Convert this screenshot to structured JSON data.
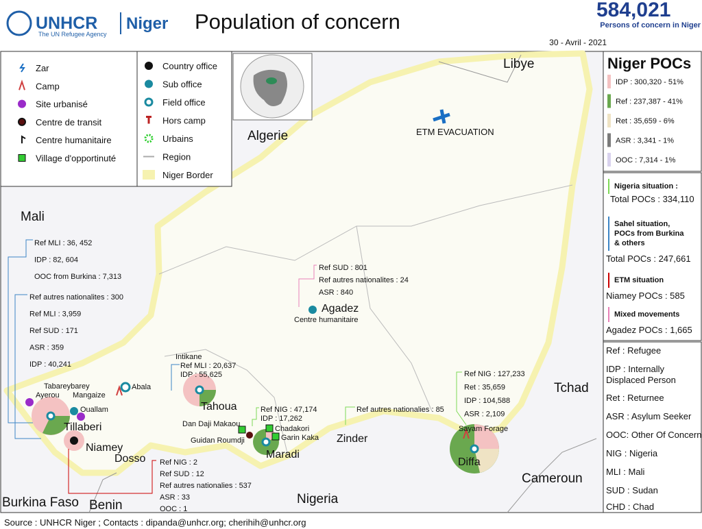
{
  "header": {
    "logo": "UNHCR",
    "office": "Niger",
    "tagline": "The UN Refugee Agency",
    "title": "Population of concern",
    "total": "584,021",
    "total_caption": "Persons of concern in Niger",
    "date": "30 - Avril - 2021"
  },
  "legend": {
    "items": [
      {
        "label": "Zar"
      },
      {
        "label": "Camp"
      },
      {
        "label": "Site urbanisé"
      },
      {
        "label": "Centre de transit"
      },
      {
        "label": "Centre humanitaire"
      },
      {
        "label": "Village d'opportinuté"
      },
      {
        "label": "Country office"
      },
      {
        "label": "Sub office"
      },
      {
        "label": "Field office"
      },
      {
        "label": "Hors camp"
      },
      {
        "label": "Urbains"
      },
      {
        "label": "Region"
      },
      {
        "label": "Niger Border"
      }
    ]
  },
  "map": {
    "countries": [
      "Libye",
      "Algerie",
      "Mali",
      "Tchad",
      "Nigeria",
      "Cameroun",
      "Burkina Faso",
      "Benin"
    ],
    "regions": [
      "Agadez",
      "Tahoua",
      "Tillaberi",
      "Niamey",
      "Dosso",
      "Maradi",
      "Zinder",
      "Diffa"
    ],
    "places": [
      "ETM EVACUATION",
      "Centre humanitaire",
      "Intikane",
      "Abala",
      "Tabareybarey",
      "Ayerou",
      "Mangaize",
      "Ouallam",
      "Dan Daji Makaou",
      "Guidan Roumdji",
      "Chadakori",
      "Garin Kaka",
      "Sayam Forage"
    ],
    "callouts": [
      {
        "lines": [
          "Ref MLI : 36, 452",
          "IDP : 82, 604",
          "OOC from Burkina : 7,313"
        ]
      },
      {
        "lines": [
          "Ref autres nationalites : 300",
          "Ref MLI : 3,959",
          "Ref SUD : 171",
          "ASR : 359",
          "IDP : 40,241"
        ]
      },
      {
        "lines": [
          "Ref MLI : 20,637",
          "IDP : 55,625"
        ]
      },
      {
        "lines": [
          "Ref SUD : 801",
          "Ref autres nationalites : 24",
          "ASR : 840"
        ]
      },
      {
        "lines": [
          "Ref NIG : 47,174",
          "IDP : 17,262"
        ]
      },
      {
        "lines": [
          "Ref autres nationalies : 85"
        ]
      },
      {
        "lines": [
          "Ref NIG : 127,233",
          "Ret : 35,659",
          "IDP : 104,588",
          "ASR : 2,109"
        ]
      },
      {
        "lines": [
          "Ref NIG : 2",
          "Ref SUD : 12",
          "Ref autres nationalies : 537",
          "ASR : 33",
          "OOC : 1"
        ]
      }
    ]
  },
  "panel": {
    "title": "Niger POCs",
    "pocs": [
      {
        "label": "IDP : 300,320 - 51%",
        "color": "#f4c2c2"
      },
      {
        "label": "Ref : 237,387 - 41%",
        "color": "#6aa84f"
      },
      {
        "label": "Ret : 35,659 - 6%",
        "color": "#efe3c4"
      },
      {
        "label": "ASR : 3,341 - 1%",
        "color": "#7a7a7a"
      },
      {
        "label": "OOC : 7,314 - 1%",
        "color": "#d9d2ee"
      }
    ],
    "situations": [
      {
        "name": "Nigeria situation :",
        "total": "Total POCs : 334,110",
        "color": "#7ed957"
      },
      {
        "name": "Sahel situation, POCs from Burkina & others",
        "total": "Total POCs : 247,661",
        "color": "#3d85c6"
      },
      {
        "name": "ETM situation",
        "total": "Niamey POCs : 585",
        "color": "#cc0000"
      },
      {
        "name": "Mixed movements",
        "total": "Agadez POCs : 1,665",
        "color": "#e880b8"
      }
    ],
    "abbreviations": [
      "Ref : Refugee",
      "IDP : Internally Displaced Person",
      "Ret : Returnee",
      "ASR : Asylum Seeker",
      "OOC: Other Of Concern",
      "NIG : Nigeria",
      "MLI : Mali",
      "SUD : Sudan",
      "CHD : Chad"
    ]
  },
  "footer": {
    "source": "Source : UNHCR Niger ; Contacts : dipanda@unhcr.org; cherihih@unhcr.org"
  }
}
